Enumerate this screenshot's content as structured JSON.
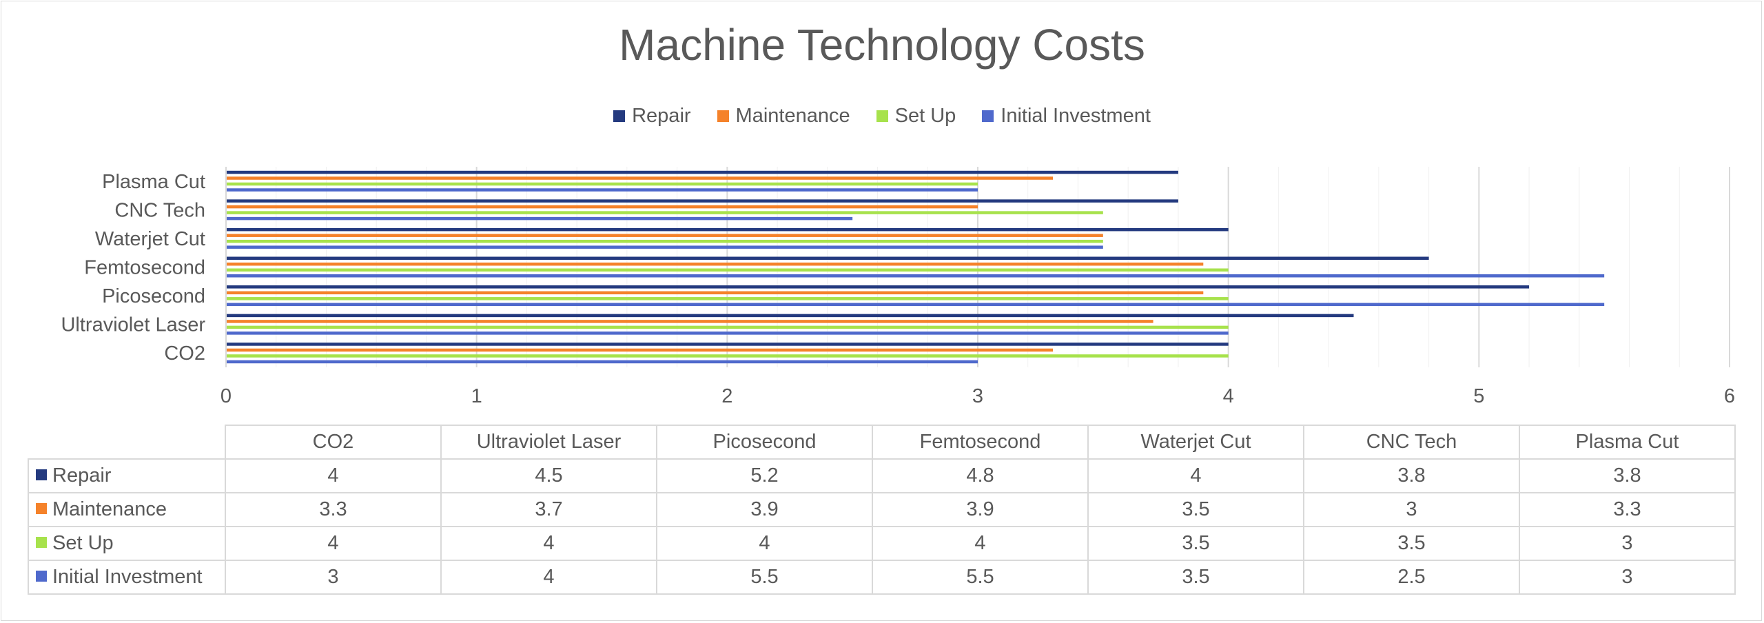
{
  "chart_data": {
    "type": "bar",
    "orientation": "horizontal",
    "title": "Machine Technology Costs",
    "categories": [
      "CO2",
      "Ultraviolet Laser",
      "Picosecond",
      "Femtosecond",
      "Waterjet Cut",
      "CNC Tech",
      "Plasma Cut"
    ],
    "series": [
      {
        "name": "Repair",
        "color": "#243A7F",
        "values": [
          4,
          4.5,
          5.2,
          4.8,
          4,
          3.8,
          3.8
        ]
      },
      {
        "name": "Maintenance",
        "color": "#F5822A",
        "values": [
          3.3,
          3.7,
          3.9,
          3.9,
          3.5,
          3,
          3.3
        ]
      },
      {
        "name": "Set Up",
        "color": "#A7E24C",
        "values": [
          4,
          4,
          4,
          4,
          3.5,
          3.5,
          3
        ]
      },
      {
        "name": "Initial Investment",
        "color": "#4F69CC",
        "values": [
          3,
          4,
          5.5,
          5.5,
          3.5,
          2.5,
          3
        ]
      }
    ],
    "xlim": [
      0,
      6
    ],
    "xticks": [
      "0",
      "1",
      "2",
      "3",
      "4",
      "5",
      "6"
    ],
    "grid": "vertical major and minor",
    "legend": "top",
    "data_table": true
  }
}
